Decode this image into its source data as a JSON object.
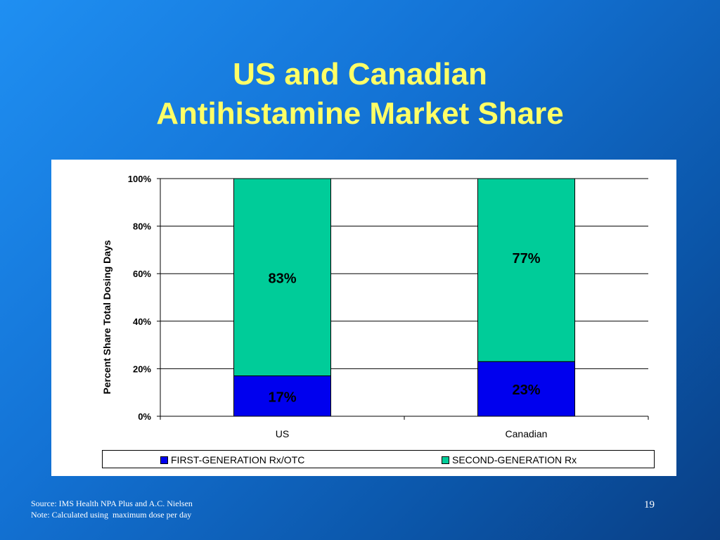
{
  "slide": {
    "title_line1": "US and Canadian",
    "title_line2": "Antihistamine Market Share",
    "source": "Source: IMS Health NPA Plus and A.C. Nielsen",
    "note": "Note: Calculated using  maximum dose per day",
    "page_number": "19"
  },
  "colors": {
    "first_generation": "#0000ee",
    "second_generation": "#00cc99",
    "title": "#ffff66"
  },
  "chart_data": {
    "type": "bar",
    "stacked": true,
    "title": "",
    "xlabel": "",
    "ylabel": "Percent Share Total Dosing Days",
    "categories": [
      "US",
      "Canadian"
    ],
    "ylim": [
      0,
      100
    ],
    "y_ticks": [
      "0%",
      "20%",
      "40%",
      "60%",
      "80%",
      "100%"
    ],
    "grid": true,
    "legend_position": "bottom",
    "series": [
      {
        "name": "FIRST-GENERATION Rx/OTC",
        "values": [
          17,
          23
        ],
        "labels": [
          "17%",
          "23%"
        ]
      },
      {
        "name": "SECOND-GENERATION Rx",
        "values": [
          83,
          77
        ],
        "labels": [
          "83%",
          "77%"
        ]
      }
    ]
  }
}
